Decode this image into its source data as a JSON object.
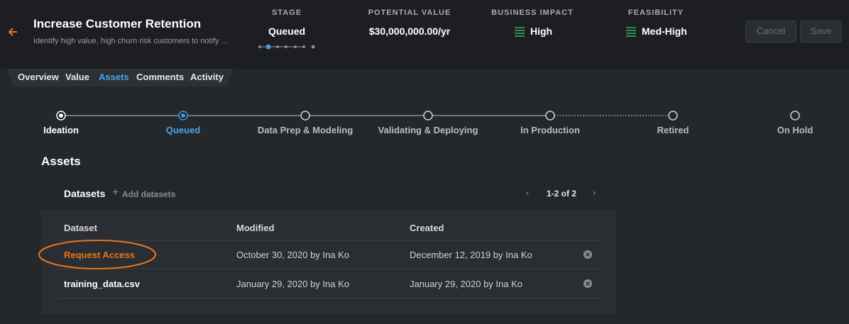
{
  "header": {
    "title": "Increase Customer Retention",
    "description": "Identify high value, high churn risk customers to notify ...",
    "stats": [
      {
        "label": "STAGE",
        "value": "Queued"
      },
      {
        "label": "POTENTIAL VALUE",
        "value": "$30,000,000.00/yr"
      },
      {
        "label": "BUSINESS IMPACT",
        "value": "High"
      },
      {
        "label": "FEASIBILITY",
        "value": "Med-High"
      }
    ],
    "buttons": [
      "Cancel",
      "Save"
    ]
  },
  "tabs": [
    "Overview",
    "Value",
    "Assets",
    "Comments",
    "Activity"
  ],
  "stages": [
    "Ideation",
    "Queued",
    "Data Prep & Modeling",
    "Validating & Deploying",
    "In Production",
    "Retired",
    "On Hold"
  ],
  "section_title": "Assets",
  "datasets": {
    "title": "Datasets",
    "add": "Add datasets",
    "pagination": "1-2 of 2",
    "columns": [
      "Dataset",
      "Modified",
      "Created"
    ],
    "rows": [
      [
        "Request Access",
        "October 30, 2020 by Ina Ko",
        "December 12, 2019 by Ina Ko"
      ],
      [
        "training_data.csv",
        "January 29, 2020 by Ina Ko",
        "January 29, 2020 by Ina Ko"
      ]
    ]
  }
}
